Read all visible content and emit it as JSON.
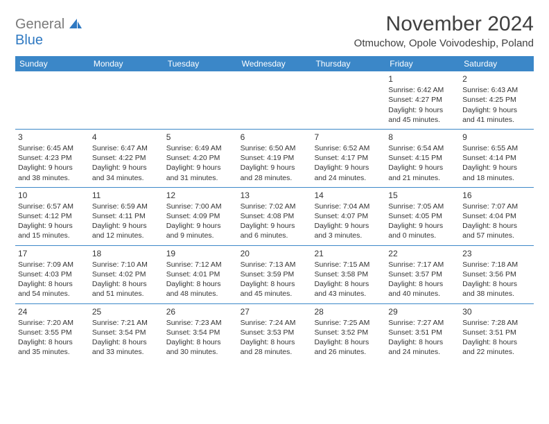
{
  "logo": {
    "gen": "General",
    "blue": "Blue"
  },
  "title": "November 2024",
  "subtitle": "Otmuchow, Opole Voivodeship, Poland",
  "colors": {
    "header_bg": "#3b87c8",
    "header_fg": "#ffffff",
    "title_color": "#404040",
    "text_color": "#333333",
    "logo_gray": "#7a7a7a",
    "logo_blue": "#2f79c2",
    "row_border": "#3b87c8",
    "background": "#ffffff"
  },
  "day_names": [
    "Sunday",
    "Monday",
    "Tuesday",
    "Wednesday",
    "Thursday",
    "Friday",
    "Saturday"
  ],
  "weeks": [
    [
      null,
      null,
      null,
      null,
      null,
      {
        "n": "1",
        "sr": "Sunrise: 6:42 AM",
        "ss": "Sunset: 4:27 PM",
        "d1": "Daylight: 9 hours",
        "d2": "and 45 minutes."
      },
      {
        "n": "2",
        "sr": "Sunrise: 6:43 AM",
        "ss": "Sunset: 4:25 PM",
        "d1": "Daylight: 9 hours",
        "d2": "and 41 minutes."
      }
    ],
    [
      {
        "n": "3",
        "sr": "Sunrise: 6:45 AM",
        "ss": "Sunset: 4:23 PM",
        "d1": "Daylight: 9 hours",
        "d2": "and 38 minutes."
      },
      {
        "n": "4",
        "sr": "Sunrise: 6:47 AM",
        "ss": "Sunset: 4:22 PM",
        "d1": "Daylight: 9 hours",
        "d2": "and 34 minutes."
      },
      {
        "n": "5",
        "sr": "Sunrise: 6:49 AM",
        "ss": "Sunset: 4:20 PM",
        "d1": "Daylight: 9 hours",
        "d2": "and 31 minutes."
      },
      {
        "n": "6",
        "sr": "Sunrise: 6:50 AM",
        "ss": "Sunset: 4:19 PM",
        "d1": "Daylight: 9 hours",
        "d2": "and 28 minutes."
      },
      {
        "n": "7",
        "sr": "Sunrise: 6:52 AM",
        "ss": "Sunset: 4:17 PM",
        "d1": "Daylight: 9 hours",
        "d2": "and 24 minutes."
      },
      {
        "n": "8",
        "sr": "Sunrise: 6:54 AM",
        "ss": "Sunset: 4:15 PM",
        "d1": "Daylight: 9 hours",
        "d2": "and 21 minutes."
      },
      {
        "n": "9",
        "sr": "Sunrise: 6:55 AM",
        "ss": "Sunset: 4:14 PM",
        "d1": "Daylight: 9 hours",
        "d2": "and 18 minutes."
      }
    ],
    [
      {
        "n": "10",
        "sr": "Sunrise: 6:57 AM",
        "ss": "Sunset: 4:12 PM",
        "d1": "Daylight: 9 hours",
        "d2": "and 15 minutes."
      },
      {
        "n": "11",
        "sr": "Sunrise: 6:59 AM",
        "ss": "Sunset: 4:11 PM",
        "d1": "Daylight: 9 hours",
        "d2": "and 12 minutes."
      },
      {
        "n": "12",
        "sr": "Sunrise: 7:00 AM",
        "ss": "Sunset: 4:09 PM",
        "d1": "Daylight: 9 hours",
        "d2": "and 9 minutes."
      },
      {
        "n": "13",
        "sr": "Sunrise: 7:02 AM",
        "ss": "Sunset: 4:08 PM",
        "d1": "Daylight: 9 hours",
        "d2": "and 6 minutes."
      },
      {
        "n": "14",
        "sr": "Sunrise: 7:04 AM",
        "ss": "Sunset: 4:07 PM",
        "d1": "Daylight: 9 hours",
        "d2": "and 3 minutes."
      },
      {
        "n": "15",
        "sr": "Sunrise: 7:05 AM",
        "ss": "Sunset: 4:05 PM",
        "d1": "Daylight: 9 hours",
        "d2": "and 0 minutes."
      },
      {
        "n": "16",
        "sr": "Sunrise: 7:07 AM",
        "ss": "Sunset: 4:04 PM",
        "d1": "Daylight: 8 hours",
        "d2": "and 57 minutes."
      }
    ],
    [
      {
        "n": "17",
        "sr": "Sunrise: 7:09 AM",
        "ss": "Sunset: 4:03 PM",
        "d1": "Daylight: 8 hours",
        "d2": "and 54 minutes."
      },
      {
        "n": "18",
        "sr": "Sunrise: 7:10 AM",
        "ss": "Sunset: 4:02 PM",
        "d1": "Daylight: 8 hours",
        "d2": "and 51 minutes."
      },
      {
        "n": "19",
        "sr": "Sunrise: 7:12 AM",
        "ss": "Sunset: 4:01 PM",
        "d1": "Daylight: 8 hours",
        "d2": "and 48 minutes."
      },
      {
        "n": "20",
        "sr": "Sunrise: 7:13 AM",
        "ss": "Sunset: 3:59 PM",
        "d1": "Daylight: 8 hours",
        "d2": "and 45 minutes."
      },
      {
        "n": "21",
        "sr": "Sunrise: 7:15 AM",
        "ss": "Sunset: 3:58 PM",
        "d1": "Daylight: 8 hours",
        "d2": "and 43 minutes."
      },
      {
        "n": "22",
        "sr": "Sunrise: 7:17 AM",
        "ss": "Sunset: 3:57 PM",
        "d1": "Daylight: 8 hours",
        "d2": "and 40 minutes."
      },
      {
        "n": "23",
        "sr": "Sunrise: 7:18 AM",
        "ss": "Sunset: 3:56 PM",
        "d1": "Daylight: 8 hours",
        "d2": "and 38 minutes."
      }
    ],
    [
      {
        "n": "24",
        "sr": "Sunrise: 7:20 AM",
        "ss": "Sunset: 3:55 PM",
        "d1": "Daylight: 8 hours",
        "d2": "and 35 minutes."
      },
      {
        "n": "25",
        "sr": "Sunrise: 7:21 AM",
        "ss": "Sunset: 3:54 PM",
        "d1": "Daylight: 8 hours",
        "d2": "and 33 minutes."
      },
      {
        "n": "26",
        "sr": "Sunrise: 7:23 AM",
        "ss": "Sunset: 3:54 PM",
        "d1": "Daylight: 8 hours",
        "d2": "and 30 minutes."
      },
      {
        "n": "27",
        "sr": "Sunrise: 7:24 AM",
        "ss": "Sunset: 3:53 PM",
        "d1": "Daylight: 8 hours",
        "d2": "and 28 minutes."
      },
      {
        "n": "28",
        "sr": "Sunrise: 7:25 AM",
        "ss": "Sunset: 3:52 PM",
        "d1": "Daylight: 8 hours",
        "d2": "and 26 minutes."
      },
      {
        "n": "29",
        "sr": "Sunrise: 7:27 AM",
        "ss": "Sunset: 3:51 PM",
        "d1": "Daylight: 8 hours",
        "d2": "and 24 minutes."
      },
      {
        "n": "30",
        "sr": "Sunrise: 7:28 AM",
        "ss": "Sunset: 3:51 PM",
        "d1": "Daylight: 8 hours",
        "d2": "and 22 minutes."
      }
    ]
  ]
}
